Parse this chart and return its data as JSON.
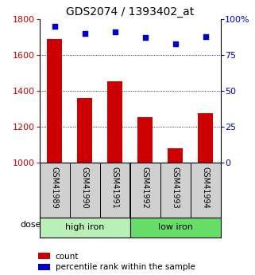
{
  "title": "GDS2074 / 1393402_at",
  "categories": [
    "GSM41989",
    "GSM41990",
    "GSM41991",
    "GSM41992",
    "GSM41993",
    "GSM41994"
  ],
  "counts": [
    1690,
    1360,
    1455,
    1250,
    1080,
    1275
  ],
  "percentiles": [
    95,
    90,
    91,
    87,
    83,
    88
  ],
  "groups": [
    {
      "label": "high iron",
      "color": "#b8f0b8"
    },
    {
      "label": "low iron",
      "color": "#66dd66"
    }
  ],
  "bar_color": "#cc0000",
  "dot_color": "#0000cc",
  "ylim_left": [
    1000,
    1800
  ],
  "ylim_right": [
    0,
    100
  ],
  "yticks_left": [
    1000,
    1200,
    1400,
    1600,
    1800
  ],
  "yticks_right": [
    0,
    25,
    50,
    75,
    100
  ],
  "left_tick_color": "#cc0000",
  "right_tick_color": "#0000cc",
  "grid_lines": [
    1200,
    1400,
    1600
  ],
  "title_fontsize": 10,
  "tick_label_fontsize": 7,
  "axis_tick_fontsize": 8,
  "legend_count_label": "count",
  "legend_percentile_label": "percentile rank within the sample",
  "dose_label": "dose",
  "xtick_bg": "#d0d0d0",
  "high_iron_color": "#b8f0b8",
  "low_iron_color": "#66dd66"
}
